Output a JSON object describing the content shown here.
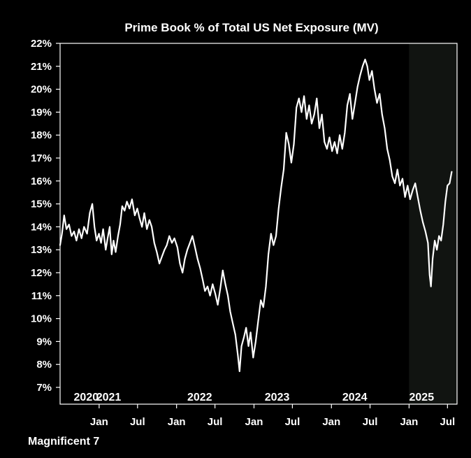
{
  "chart_data": {
    "type": "line",
    "title": "Prime Book % of Total US Net Exposure (MV)",
    "footer_label": "Magnificent 7",
    "xlabel": "",
    "ylabel": "",
    "ylim": [
      7,
      22
    ],
    "y_ticks": [
      "7%",
      "8%",
      "9%",
      "10%",
      "11%",
      "12%",
      "13%",
      "14%",
      "15%",
      "16%",
      "17%",
      "18%",
      "19%",
      "20%",
      "21%",
      "22%"
    ],
    "x_range": [
      "2020-07-01",
      "2025-08-15"
    ],
    "year_labels": [
      {
        "label": "2020",
        "date": "2020-11-01"
      },
      {
        "label": "2021",
        "date": "2021-02-15"
      },
      {
        "label": "2022",
        "date": "2022-04-20"
      },
      {
        "label": "2023",
        "date": "2023-04-20"
      },
      {
        "label": "2024",
        "date": "2024-04-20"
      },
      {
        "label": "2025",
        "date": "2025-03-01"
      }
    ],
    "month_ticks": [
      {
        "label": "Jan",
        "date": "2021-01-01"
      },
      {
        "label": "Jul",
        "date": "2021-07-01"
      },
      {
        "label": "Jan",
        "date": "2022-01-01"
      },
      {
        "label": "Jul",
        "date": "2022-07-01"
      },
      {
        "label": "Jan",
        "date": "2023-01-01"
      },
      {
        "label": "Jul",
        "date": "2023-07-01"
      },
      {
        "label": "Jan",
        "date": "2024-01-01"
      },
      {
        "label": "Jul",
        "date": "2024-07-01"
      },
      {
        "label": "Jan",
        "date": "2025-01-01"
      },
      {
        "label": "Jul",
        "date": "2025-07-01"
      }
    ],
    "shaded_region": {
      "start": "2025-01-01",
      "end": "2025-08-15",
      "color": "#111411"
    },
    "grid": false,
    "colors": {
      "background": "#000000",
      "line": "#ffffff",
      "axis": "#ffffff"
    },
    "series": [
      {
        "points": [
          [
            "2020-07-01",
            13.2
          ],
          [
            "2020-07-10",
            13.7
          ],
          [
            "2020-07-20",
            14.5
          ],
          [
            "2020-07-31",
            13.9
          ],
          [
            "2020-08-12",
            14.1
          ],
          [
            "2020-08-24",
            13.6
          ],
          [
            "2020-09-05",
            13.8
          ],
          [
            "2020-09-16",
            13.4
          ],
          [
            "2020-09-28",
            13.9
          ],
          [
            "2020-10-10",
            13.5
          ],
          [
            "2020-10-22",
            14.0
          ],
          [
            "2020-11-05",
            13.7
          ],
          [
            "2020-11-18",
            14.6
          ],
          [
            "2020-11-30",
            15.0
          ],
          [
            "2020-12-10",
            14.0
          ],
          [
            "2020-12-20",
            13.4
          ],
          [
            "2020-12-31",
            13.7
          ],
          [
            "2021-01-10",
            13.3
          ],
          [
            "2021-01-20",
            13.9
          ],
          [
            "2021-02-01",
            13.0
          ],
          [
            "2021-02-10",
            13.5
          ],
          [
            "2021-02-20",
            14.0
          ],
          [
            "2021-03-01",
            12.8
          ],
          [
            "2021-03-10",
            13.4
          ],
          [
            "2021-03-20",
            12.9
          ],
          [
            "2021-03-31",
            13.6
          ],
          [
            "2021-04-10",
            14.1
          ],
          [
            "2021-04-20",
            14.9
          ],
          [
            "2021-05-01",
            14.7
          ],
          [
            "2021-05-12",
            15.1
          ],
          [
            "2021-05-24",
            14.8
          ],
          [
            "2021-06-05",
            15.2
          ],
          [
            "2021-06-18",
            14.5
          ],
          [
            "2021-06-30",
            14.8
          ],
          [
            "2021-07-10",
            14.4
          ],
          [
            "2021-07-22",
            14.0
          ],
          [
            "2021-08-02",
            14.6
          ],
          [
            "2021-08-14",
            13.9
          ],
          [
            "2021-08-26",
            14.3
          ],
          [
            "2021-09-06",
            14.0
          ],
          [
            "2021-09-18",
            13.3
          ],
          [
            "2021-09-30",
            12.9
          ],
          [
            "2021-10-12",
            12.4
          ],
          [
            "2021-10-24",
            12.7
          ],
          [
            "2021-11-05",
            13.0
          ],
          [
            "2021-11-16",
            13.2
          ],
          [
            "2021-11-28",
            13.6
          ],
          [
            "2021-12-10",
            13.3
          ],
          [
            "2021-12-22",
            13.5
          ],
          [
            "2022-01-05",
            13.1
          ],
          [
            "2022-01-17",
            12.4
          ],
          [
            "2022-01-29",
            12.0
          ],
          [
            "2022-02-09",
            12.6
          ],
          [
            "2022-02-21",
            13.0
          ],
          [
            "2022-03-05",
            13.3
          ],
          [
            "2022-03-17",
            13.6
          ],
          [
            "2022-03-29",
            13.1
          ],
          [
            "2022-04-10",
            12.6
          ],
          [
            "2022-04-22",
            12.2
          ],
          [
            "2022-05-04",
            11.7
          ],
          [
            "2022-05-15",
            11.2
          ],
          [
            "2022-05-27",
            11.4
          ],
          [
            "2022-06-08",
            11.0
          ],
          [
            "2022-06-20",
            11.5
          ],
          [
            "2022-07-02",
            11.1
          ],
          [
            "2022-07-14",
            10.6
          ],
          [
            "2022-07-26",
            11.3
          ],
          [
            "2022-08-07",
            12.1
          ],
          [
            "2022-08-19",
            11.5
          ],
          [
            "2022-08-31",
            11.0
          ],
          [
            "2022-09-11",
            10.3
          ],
          [
            "2022-09-23",
            9.8
          ],
          [
            "2022-10-05",
            9.3
          ],
          [
            "2022-10-17",
            8.4
          ],
          [
            "2022-10-25",
            7.7
          ],
          [
            "2022-11-03",
            8.8
          ],
          [
            "2022-11-15",
            9.2
          ],
          [
            "2022-11-25",
            9.6
          ],
          [
            "2022-12-06",
            8.8
          ],
          [
            "2022-12-16",
            9.4
          ],
          [
            "2022-12-28",
            8.3
          ],
          [
            "2023-01-09",
            9.0
          ],
          [
            "2023-01-21",
            9.9
          ],
          [
            "2023-02-02",
            10.8
          ],
          [
            "2023-02-14",
            10.5
          ],
          [
            "2023-02-26",
            11.4
          ],
          [
            "2023-03-10",
            12.8
          ],
          [
            "2023-03-22",
            13.7
          ],
          [
            "2023-04-03",
            13.2
          ],
          [
            "2023-04-15",
            13.6
          ],
          [
            "2023-04-27",
            14.8
          ],
          [
            "2023-05-09",
            15.7
          ],
          [
            "2023-05-21",
            16.5
          ],
          [
            "2023-06-02",
            18.1
          ],
          [
            "2023-06-14",
            17.6
          ],
          [
            "2023-06-26",
            16.8
          ],
          [
            "2023-07-08",
            17.6
          ],
          [
            "2023-07-20",
            19.2
          ],
          [
            "2023-08-01",
            19.6
          ],
          [
            "2023-08-13",
            19.0
          ],
          [
            "2023-08-25",
            19.7
          ],
          [
            "2023-09-06",
            18.7
          ],
          [
            "2023-09-18",
            19.3
          ],
          [
            "2023-09-30",
            18.5
          ],
          [
            "2023-10-12",
            18.9
          ],
          [
            "2023-10-24",
            19.6
          ],
          [
            "2023-11-05",
            18.3
          ],
          [
            "2023-11-17",
            18.9
          ],
          [
            "2023-11-29",
            17.7
          ],
          [
            "2023-12-11",
            17.4
          ],
          [
            "2023-12-23",
            17.9
          ],
          [
            "2024-01-04",
            17.3
          ],
          [
            "2024-01-16",
            17.7
          ],
          [
            "2024-01-28",
            17.2
          ],
          [
            "2024-02-09",
            18.0
          ],
          [
            "2024-02-21",
            17.4
          ],
          [
            "2024-03-04",
            18.1
          ],
          [
            "2024-03-16",
            19.3
          ],
          [
            "2024-03-28",
            19.8
          ],
          [
            "2024-04-09",
            18.7
          ],
          [
            "2024-04-21",
            19.4
          ],
          [
            "2024-05-03",
            20.1
          ],
          [
            "2024-05-15",
            20.6
          ],
          [
            "2024-05-27",
            21.0
          ],
          [
            "2024-06-08",
            21.3
          ],
          [
            "2024-06-18",
            21.0
          ],
          [
            "2024-06-28",
            20.4
          ],
          [
            "2024-07-10",
            20.8
          ],
          [
            "2024-07-22",
            20.0
          ],
          [
            "2024-08-03",
            19.4
          ],
          [
            "2024-08-15",
            19.8
          ],
          [
            "2024-08-27",
            18.9
          ],
          [
            "2024-09-08",
            18.3
          ],
          [
            "2024-09-20",
            17.4
          ],
          [
            "2024-10-02",
            16.9
          ],
          [
            "2024-10-14",
            16.2
          ],
          [
            "2024-10-26",
            15.9
          ],
          [
            "2024-11-07",
            16.5
          ],
          [
            "2024-11-19",
            15.8
          ],
          [
            "2024-12-01",
            16.1
          ],
          [
            "2024-12-13",
            15.3
          ],
          [
            "2024-12-25",
            15.8
          ],
          [
            "2025-01-06",
            15.2
          ],
          [
            "2025-01-18",
            15.6
          ],
          [
            "2025-01-30",
            15.9
          ],
          [
            "2025-02-11",
            15.3
          ],
          [
            "2025-02-23",
            14.7
          ],
          [
            "2025-03-07",
            14.2
          ],
          [
            "2025-03-19",
            13.8
          ],
          [
            "2025-03-31",
            13.3
          ],
          [
            "2025-04-08",
            11.9
          ],
          [
            "2025-04-14",
            11.4
          ],
          [
            "2025-04-22",
            12.6
          ],
          [
            "2025-05-02",
            13.4
          ],
          [
            "2025-05-12",
            13.0
          ],
          [
            "2025-05-22",
            13.6
          ],
          [
            "2025-06-01",
            13.4
          ],
          [
            "2025-06-11",
            14.1
          ],
          [
            "2025-06-21",
            15.1
          ],
          [
            "2025-07-01",
            15.8
          ],
          [
            "2025-07-11",
            15.9
          ],
          [
            "2025-07-21",
            16.4
          ]
        ]
      }
    ]
  }
}
